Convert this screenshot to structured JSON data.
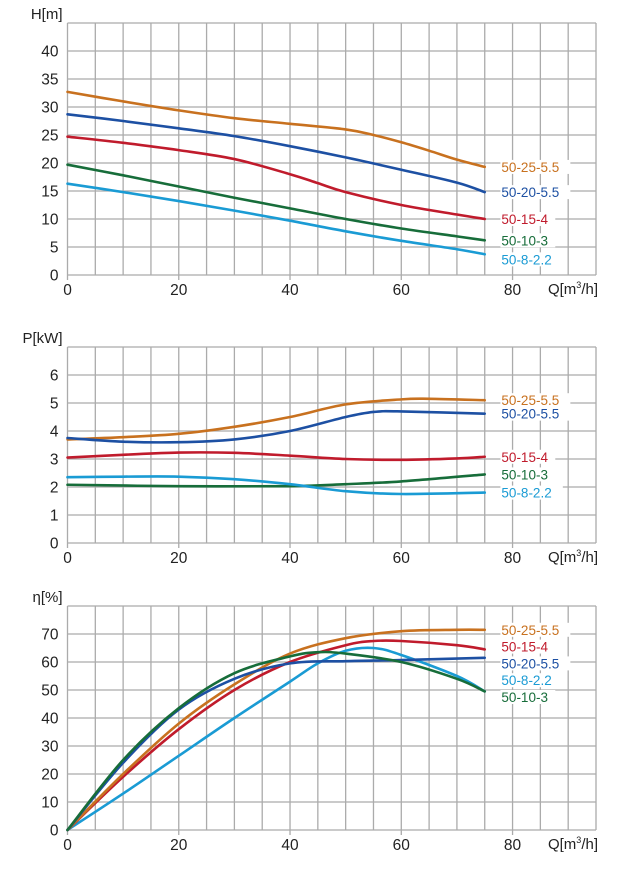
{
  "chart_data": [
    {
      "type": "line",
      "title": "",
      "ylabel": "H[m]",
      "xlabel_parts": [
        "Q[m",
        "3",
        "/h]"
      ],
      "xlim": [
        0,
        95
      ],
      "ylim": [
        0,
        45
      ],
      "x_ticks": [
        0,
        20,
        40,
        60,
        80
      ],
      "y_ticks": [
        0,
        5,
        10,
        15,
        20,
        25,
        30,
        35,
        40
      ],
      "grid": true,
      "legend_placement": "right-end-of-curves",
      "series": [
        {
          "name": "50-25-5.5",
          "color": "#c8711f",
          "points": [
            [
              0,
              32.7
            ],
            [
              10,
              31.0
            ],
            [
              20,
              29.4
            ],
            [
              30,
              28.0
            ],
            [
              40,
              27.0
            ],
            [
              50,
              26.0
            ],
            [
              55,
              25.0
            ],
            [
              60,
              23.7
            ],
            [
              65,
              22.2
            ],
            [
              70,
              20.6
            ],
            [
              75,
              19.3
            ]
          ]
        },
        {
          "name": "50-20-5.5",
          "color": "#1d50a3",
          "points": [
            [
              0,
              28.7
            ],
            [
              10,
              27.5
            ],
            [
              20,
              26.2
            ],
            [
              30,
              24.8
            ],
            [
              40,
              23.0
            ],
            [
              50,
              21.0
            ],
            [
              60,
              18.8
            ],
            [
              70,
              16.5
            ],
            [
              75,
              14.8
            ]
          ]
        },
        {
          "name": "50-15-4",
          "color": "#c01b2c",
          "points": [
            [
              0,
              24.7
            ],
            [
              10,
              23.6
            ],
            [
              20,
              22.3
            ],
            [
              30,
              20.7
            ],
            [
              40,
              18.0
            ],
            [
              45,
              16.4
            ],
            [
              50,
              14.8
            ],
            [
              60,
              12.5
            ],
            [
              70,
              10.8
            ],
            [
              75,
              10.0
            ]
          ]
        },
        {
          "name": "50-10-3",
          "color": "#176d3a",
          "points": [
            [
              0,
              19.7
            ],
            [
              10,
              17.8
            ],
            [
              20,
              15.8
            ],
            [
              30,
              13.8
            ],
            [
              40,
              11.9
            ],
            [
              50,
              10.0
            ],
            [
              60,
              8.3
            ],
            [
              70,
              6.9
            ],
            [
              75,
              6.2
            ]
          ]
        },
        {
          "name": "50-8-2.2",
          "color": "#1a9bd4",
          "points": [
            [
              0,
              16.3
            ],
            [
              10,
              14.8
            ],
            [
              20,
              13.2
            ],
            [
              30,
              11.5
            ],
            [
              40,
              9.7
            ],
            [
              50,
              7.8
            ],
            [
              60,
              6.1
            ],
            [
              70,
              4.6
            ],
            [
              75,
              3.7
            ]
          ]
        }
      ],
      "labels": [
        {
          "series": "50-25-5.5",
          "value": 19.3
        },
        {
          "series": "50-20-5.5",
          "value": 14.8
        },
        {
          "series": "50-15-4",
          "value": 10.0
        },
        {
          "series": "50-10-3",
          "value": 6.2
        },
        {
          "series": "50-8-2.2",
          "value": 2.8
        }
      ]
    },
    {
      "type": "line",
      "title": "",
      "ylabel": "P[kW]",
      "xlabel_parts": [
        "Q[m",
        "3",
        "/h]"
      ],
      "xlim": [
        0,
        95
      ],
      "ylim": [
        0,
        7
      ],
      "x_ticks": [
        0,
        20,
        40,
        60,
        80
      ],
      "y_ticks": [
        0,
        1,
        2,
        3,
        4,
        5,
        6
      ],
      "grid": true,
      "legend_placement": "right-end-of-curves",
      "series": [
        {
          "name": "50-25-5.5",
          "color": "#c8711f",
          "points": [
            [
              0,
              3.7
            ],
            [
              10,
              3.78
            ],
            [
              20,
              3.9
            ],
            [
              30,
              4.15
            ],
            [
              40,
              4.5
            ],
            [
              50,
              4.95
            ],
            [
              60,
              5.13
            ],
            [
              65,
              5.15
            ],
            [
              75,
              5.1
            ]
          ]
        },
        {
          "name": "50-20-5.5",
          "color": "#1d50a3",
          "points": [
            [
              0,
              3.75
            ],
            [
              10,
              3.62
            ],
            [
              20,
              3.6
            ],
            [
              30,
              3.7
            ],
            [
              40,
              4.0
            ],
            [
              50,
              4.5
            ],
            [
              55,
              4.68
            ],
            [
              60,
              4.7
            ],
            [
              75,
              4.62
            ]
          ]
        },
        {
          "name": "50-15-4",
          "color": "#c01b2c",
          "points": [
            [
              0,
              3.05
            ],
            [
              10,
              3.15
            ],
            [
              20,
              3.23
            ],
            [
              30,
              3.22
            ],
            [
              40,
              3.12
            ],
            [
              50,
              3.0
            ],
            [
              60,
              2.97
            ],
            [
              70,
              3.02
            ],
            [
              75,
              3.08
            ]
          ]
        },
        {
          "name": "50-10-3",
          "color": "#176d3a",
          "points": [
            [
              0,
              2.08
            ],
            [
              20,
              2.03
            ],
            [
              40,
              2.03
            ],
            [
              50,
              2.1
            ],
            [
              60,
              2.2
            ],
            [
              75,
              2.45
            ]
          ]
        },
        {
          "name": "50-8-2.2",
          "color": "#1a9bd4",
          "points": [
            [
              0,
              2.35
            ],
            [
              10,
              2.37
            ],
            [
              20,
              2.37
            ],
            [
              30,
              2.28
            ],
            [
              40,
              2.1
            ],
            [
              50,
              1.85
            ],
            [
              60,
              1.75
            ],
            [
              75,
              1.8
            ]
          ]
        }
      ],
      "labels": [
        {
          "series": "50-25-5.5",
          "value": 5.1
        },
        {
          "series": "50-20-5.5",
          "value": 4.62
        },
        {
          "series": "50-15-4",
          "value": 3.08
        },
        {
          "series": "50-10-3",
          "value": 2.45
        },
        {
          "series": "50-8-2.2",
          "value": 1.8
        }
      ]
    },
    {
      "type": "line",
      "title": "",
      "ylabel": "η[%]",
      "xlabel_parts": [
        "Q[m",
        "3",
        "/h]"
      ],
      "xlim": [
        0,
        95
      ],
      "ylim": [
        0,
        80
      ],
      "x_ticks": [
        0,
        20,
        40,
        60,
        80
      ],
      "y_ticks": [
        0,
        10,
        20,
        30,
        40,
        50,
        60,
        70
      ],
      "grid": true,
      "legend_placement": "right-end-of-curves",
      "series": [
        {
          "name": "50-8-2.2",
          "color": "#1a9bd4",
          "points": [
            [
              0,
              0
            ],
            [
              10,
              13
            ],
            [
              20,
              26.5
            ],
            [
              30,
              40
            ],
            [
              40,
              53
            ],
            [
              45,
              59.5
            ],
            [
              50,
              64
            ],
            [
              55,
              65
            ],
            [
              60,
              62.5
            ],
            [
              70,
              55
            ],
            [
              75,
              49.5
            ]
          ]
        },
        {
          "name": "50-15-4",
          "color": "#c01b2c",
          "points": [
            [
              0,
              0
            ],
            [
              10,
              19
            ],
            [
              20,
              36
            ],
            [
              30,
              50
            ],
            [
              40,
              60
            ],
            [
              50,
              66
            ],
            [
              55,
              67.5
            ],
            [
              60,
              67.5
            ],
            [
              70,
              66
            ],
            [
              75,
              64.5
            ]
          ]
        },
        {
          "name": "50-25-5.5",
          "color": "#c8711f",
          "points": [
            [
              0,
              0
            ],
            [
              10,
              20
            ],
            [
              20,
              38
            ],
            [
              30,
              52
            ],
            [
              40,
              63
            ],
            [
              50,
              68.5
            ],
            [
              60,
              71
            ],
            [
              70,
              71.5
            ],
            [
              75,
              71.5
            ]
          ]
        },
        {
          "name": "50-20-5.5",
          "color": "#1d50a3",
          "points": [
            [
              0,
              0
            ],
            [
              10,
              24
            ],
            [
              20,
              43
            ],
            [
              30,
              54
            ],
            [
              40,
              59.5
            ],
            [
              50,
              60.3
            ],
            [
              60,
              60.7
            ],
            [
              75,
              61.5
            ]
          ]
        },
        {
          "name": "50-10-3",
          "color": "#176d3a",
          "points": [
            [
              0,
              0
            ],
            [
              10,
              25
            ],
            [
              20,
              43.5
            ],
            [
              30,
              56
            ],
            [
              40,
              62
            ],
            [
              45,
              63.5
            ],
            [
              50,
              63
            ],
            [
              60,
              60
            ],
            [
              70,
              54
            ],
            [
              75,
              49.5
            ]
          ]
        }
      ],
      "labels": [
        {
          "series": "50-25-5.5",
          "value": 71.5
        },
        {
          "series": "50-15-4",
          "value": 65.5
        },
        {
          "series": "50-20-5.5",
          "value": 59.5
        },
        {
          "series": "50-8-2.2",
          "value": 53.5
        },
        {
          "series": "50-10-3",
          "value": 47.5
        }
      ]
    }
  ]
}
